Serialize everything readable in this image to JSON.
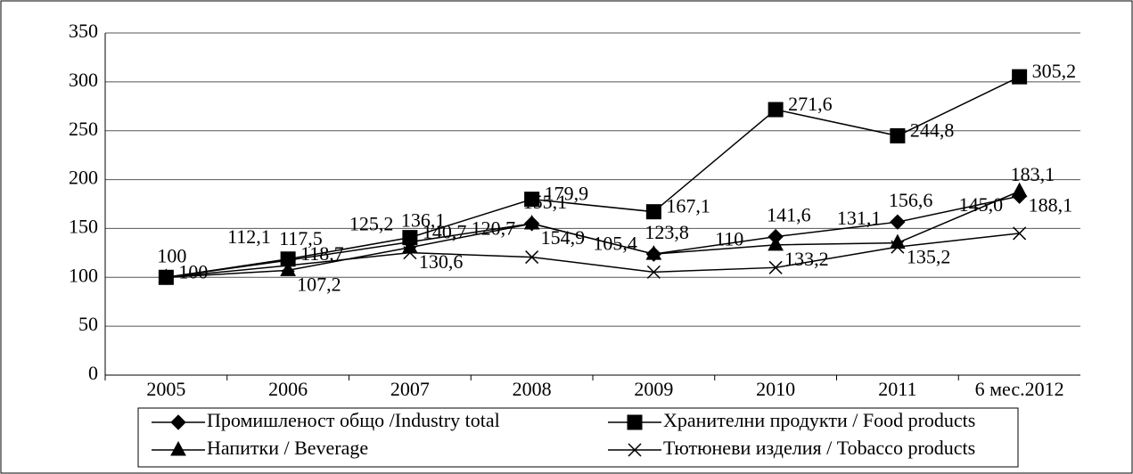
{
  "chart_data": {
    "type": "line",
    "categories": [
      "2005",
      "2006",
      "2007",
      "2008",
      "2009",
      "2010",
      "2011",
      "6 мес.2012"
    ],
    "ylim": [
      0,
      350
    ],
    "yticks": [
      0,
      50,
      100,
      150,
      200,
      250,
      300,
      350
    ],
    "grid": true,
    "series": [
      {
        "name": "Промишленост общо /Industry total",
        "color": "#000000",
        "marker": "diamond",
        "values": [
          100,
          117.5,
          136.1,
          155.1,
          123.8,
          141.6,
          156.6,
          183.1
        ],
        "value_labels": [
          "100",
          "117,5",
          "136,1",
          "155,1",
          "123,8",
          "141,6",
          "156,6",
          "183,1"
        ]
      },
      {
        "name": "Хранителни продукти / Food products",
        "color": "#000000",
        "marker": "square",
        "values": [
          100,
          118.7,
          140.7,
          179.9,
          167.1,
          271.6,
          244.8,
          305.2
        ],
        "value_labels": [
          "100",
          "118,7",
          "140,7",
          "179,9",
          "167,1",
          "271,6",
          "244,8",
          "305,2"
        ]
      },
      {
        "name": "Напитки / Beverage",
        "color": "#000000",
        "marker": "triangle",
        "values": [
          100,
          107.2,
          130.6,
          154.9,
          123.8,
          133.2,
          135.2,
          188.1
        ],
        "value_labels": [
          null,
          "107,2",
          "130,6",
          "154,9",
          null,
          "133,2",
          "135,2",
          "188,1"
        ]
      },
      {
        "name": "Тютюневи изделия / Tobacco products",
        "color": "#000000",
        "marker": "x",
        "values": [
          100,
          112.1,
          125.2,
          120.7,
          105.4,
          110,
          131.1,
          145.0
        ],
        "value_labels": [
          null,
          "112,1",
          "125,2",
          "120,7",
          "105,4",
          "110",
          "131,1",
          "145,0"
        ]
      }
    ]
  }
}
